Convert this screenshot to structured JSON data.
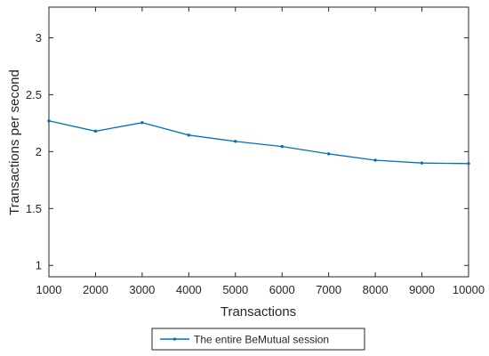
{
  "chart_data": {
    "type": "line",
    "title": "",
    "xlabel": "Transactions",
    "ylabel": "Transactions per second",
    "xlim": [
      1000,
      10000
    ],
    "ylim": [
      0.9,
      3.27
    ],
    "xticks": [
      1000,
      2000,
      3000,
      4000,
      5000,
      6000,
      7000,
      8000,
      9000,
      10000
    ],
    "xtick_labels": [
      "1000",
      "2000",
      "3000",
      "4000",
      "5000",
      "6000",
      "7000",
      "8000",
      "9000",
      "10000"
    ],
    "yticks": [
      1,
      1.5,
      2,
      2.5,
      3
    ],
    "ytick_labels": [
      "1",
      "1.5",
      "2",
      "2.5",
      "3"
    ],
    "grid": false,
    "legend_position": "bottom-center, outside",
    "series": [
      {
        "name": "The entire BeMutual session",
        "color": "#0072BD",
        "marker": "dot",
        "x": [
          1000,
          2000,
          3000,
          4000,
          5000,
          6000,
          7000,
          8000,
          9000,
          10000
        ],
        "y": [
          2.27,
          2.18,
          2.255,
          2.145,
          2.09,
          2.045,
          1.98,
          1.925,
          1.9,
          1.895
        ]
      }
    ]
  }
}
